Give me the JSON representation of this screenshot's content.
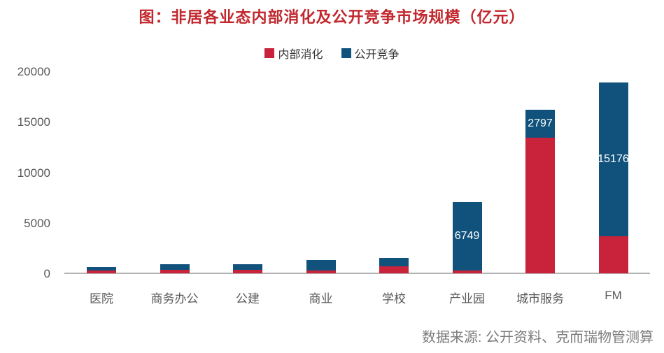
{
  "title": "图：非居各业态内部消化及公开竞争市场规模（亿元）",
  "source": "数据来源: 公开资料、克而瑞物管测算",
  "colors": {
    "internal": "#c8233b",
    "open": "#11527c",
    "title_text": "#c1272d",
    "axis_text": "#595959",
    "axis_line": "#b3b3b3",
    "bar_label_text": "#ffffff",
    "source_text": "#7b7b7b"
  },
  "legend": {
    "items": [
      {
        "label": "内部消化",
        "color": "#c8233b"
      },
      {
        "label": "公开竞争",
        "color": "#11527c"
      }
    ]
  },
  "chart_data": {
    "type": "bar",
    "stacked": true,
    "title": "图：非居各业态内部消化及公开竞争市场规模（亿元）",
    "unit": "亿元",
    "categories": [
      "医院",
      "商务办公",
      "公建",
      "商业",
      "学校",
      "产业园",
      "城市服务",
      "FM"
    ],
    "series": [
      {
        "name": "内部消化",
        "color": "#c8233b",
        "values": [
          250,
          370,
          370,
          270,
          700,
          300,
          13400,
          3700
        ],
        "labels": [
          "",
          "",
          "",
          "",
          "",
          "",
          "",
          ""
        ]
      },
      {
        "name": "公开竞争",
        "color": "#11527c",
        "values": [
          350,
          500,
          520,
          1050,
          850,
          6749,
          2797,
          15176
        ],
        "labels": [
          "",
          "",
          "",
          "",
          "",
          "6749",
          "2797",
          "15176"
        ]
      }
    ],
    "ylim": [
      0,
      20000
    ],
    "yticks": [
      0,
      5000,
      10000,
      15000,
      20000
    ],
    "grid": false,
    "legend_position": "top"
  }
}
